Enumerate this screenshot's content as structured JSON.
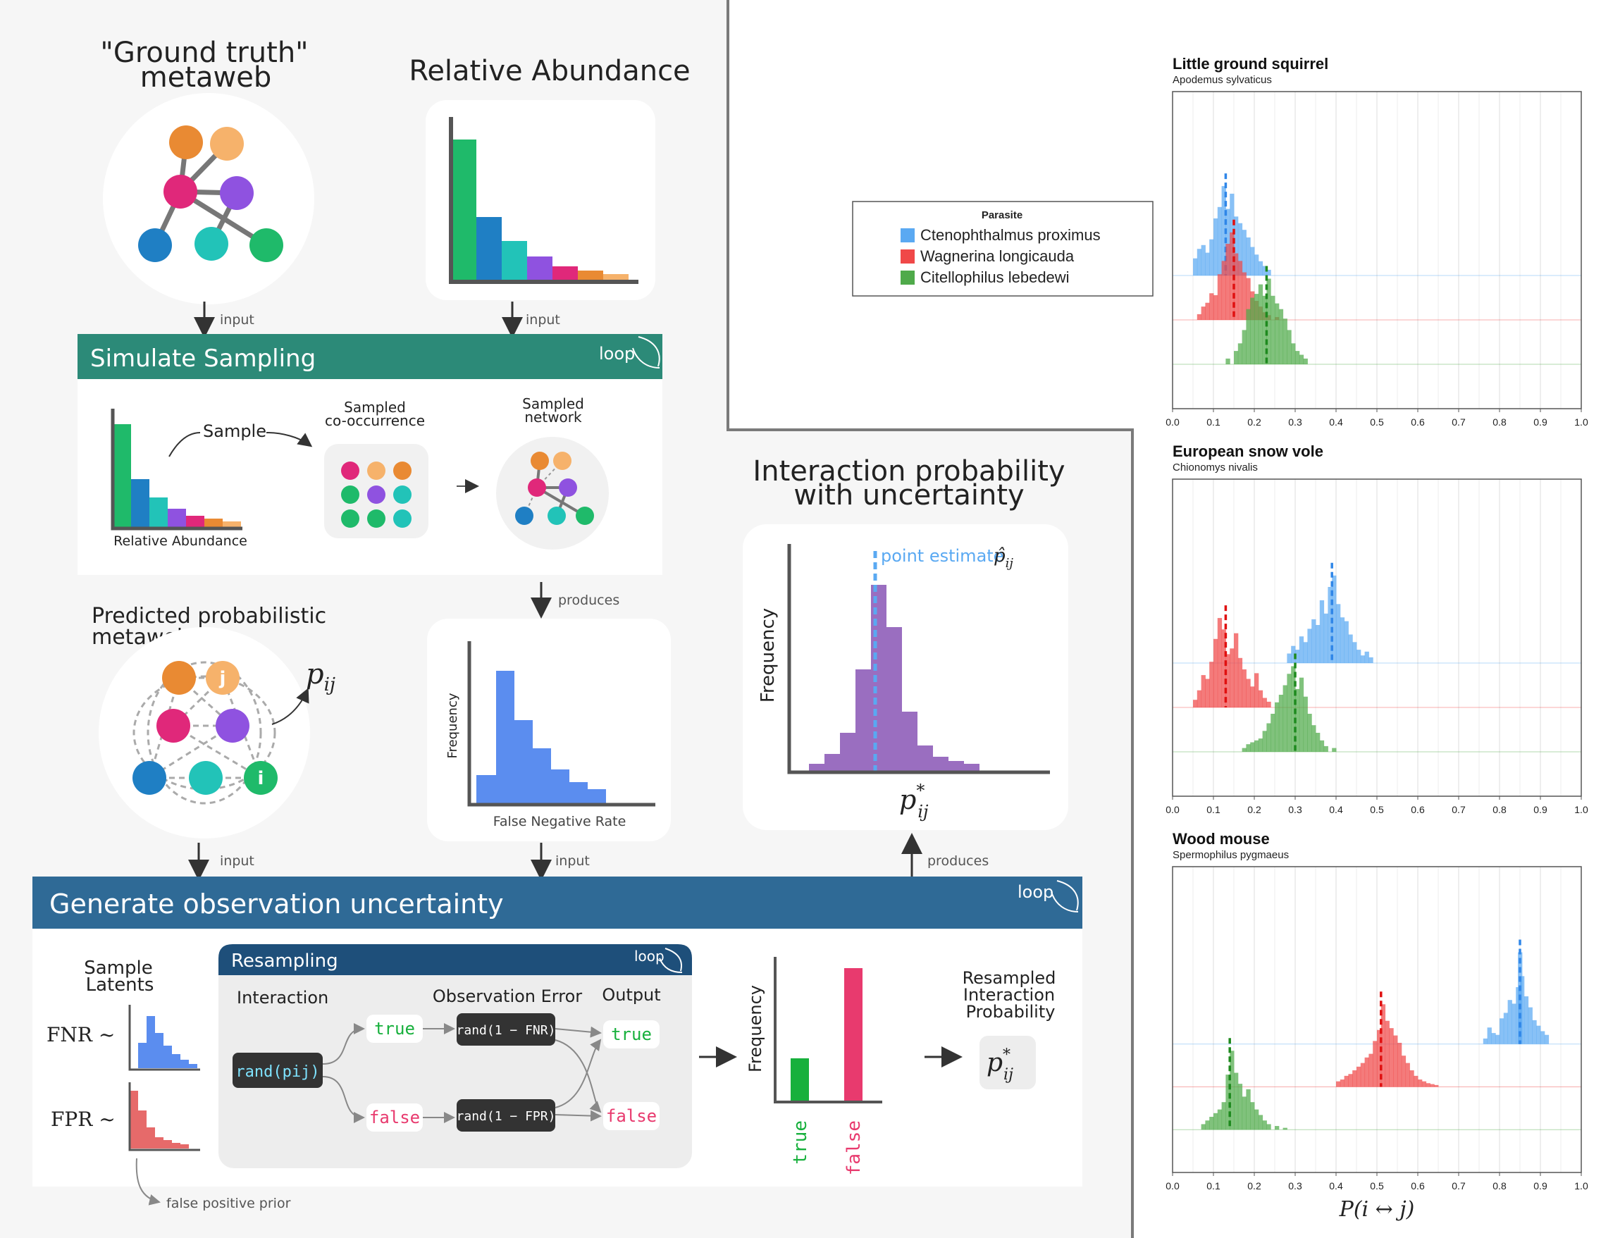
{
  "workflow": {
    "ground_truth": {
      "title_line1": "\"Ground truth\"",
      "title_line2": "metaweb"
    },
    "relative_abundance": {
      "title": "Relative Abundance"
    },
    "arrows": {
      "input": "input",
      "produces": "produces"
    },
    "simulate_sampling": {
      "title": "Simulate Sampling",
      "loop_label": "loop",
      "sample_label": "Sample",
      "sampled_cooccurrence_line1": "Sampled",
      "sampled_cooccurrence_line2": "co-occurrence",
      "sampled_network_line1": "Sampled",
      "sampled_network_line2": "network",
      "relative_abundance_caption": "Relative Abundance"
    },
    "predicted_metaweb": {
      "title_line1": "Predicted probabilistic",
      "title_line2": "metaweb",
      "pij_label": "p_ij",
      "node_i": "i",
      "node_j": "j"
    },
    "fnr_histogram": {
      "ylabel": "Frequency",
      "xlabel": "False Negative Rate"
    },
    "interaction_probability": {
      "title_line1": "Interaction probability",
      "title_line2": "with uncertainty",
      "ylabel": "Frequency",
      "point_estimate_label": "point estimate",
      "xlabel": "p*ij"
    },
    "generate_uncertainty": {
      "title": "Generate observation uncertainty",
      "loop_label": "loop",
      "sample_latents_line1": "Sample",
      "sample_latents_line2": "Latents",
      "fnr_label": "FNR ~",
      "fpr_label": "FPR ~",
      "false_positive_prior": "false positive prior",
      "resampling": {
        "title": "Resampling",
        "loop_label": "loop",
        "col_interaction": "Interaction",
        "col_observation_error": "Observation Error",
        "col_output": "Output",
        "rand_pij": "rand(pij)",
        "true_label": "true",
        "false_label": "false",
        "rand_fnr": "rand(1 − FNR)",
        "rand_fpr": "rand(1 − FPR)"
      },
      "output_hist_ylabel": "Frequency",
      "output_true": "true",
      "output_false": "false",
      "resampled_line1": "Resampled",
      "resampled_line2": "Interaction",
      "resampled_line3": "Probability",
      "pstar_label": "p*ij"
    }
  },
  "legend": {
    "title": "Parasite",
    "items": [
      {
        "name": "Ctenophthalmus proximus",
        "color": "#5aa9f2"
      },
      {
        "name": "Wagnerina longicauda",
        "color": "#f04848"
      },
      {
        "name": "Citellophilus lebedewi",
        "color": "#4faa4a"
      }
    ]
  },
  "chart_data": [
    {
      "type": "histogram",
      "title": "Little ground squirrel",
      "subtitle": "Apodemus sylvaticus",
      "xlim": [
        0.0,
        1.0
      ],
      "xticks": [
        "0.0",
        "0.1",
        "0.2",
        "0.3",
        "0.4",
        "0.5",
        "0.6",
        "0.7",
        "0.8",
        "0.9",
        "1.0"
      ],
      "series": [
        {
          "name": "Ctenophthalmus proximus",
          "point_estimate": 0.13,
          "bins": [
            [
              0.05,
              0.18
            ],
            [
              0.06,
              0.28
            ],
            [
              0.07,
              0.32
            ],
            [
              0.08,
              0.24
            ],
            [
              0.09,
              0.38
            ],
            [
              0.1,
              0.6
            ],
            [
              0.11,
              0.72
            ],
            [
              0.12,
              0.94
            ],
            [
              0.13,
              0.7
            ],
            [
              0.14,
              0.86
            ],
            [
              0.15,
              0.62
            ],
            [
              0.16,
              0.55
            ],
            [
              0.17,
              0.48
            ],
            [
              0.18,
              0.4
            ],
            [
              0.19,
              0.3
            ],
            [
              0.2,
              0.22
            ],
            [
              0.21,
              0.15
            ],
            [
              0.22,
              0.1
            ],
            [
              0.23,
              0.06
            ]
          ]
        },
        {
          "name": "Wagnerina longicauda",
          "point_estimate": 0.15,
          "bins": [
            [
              0.06,
              0.06
            ],
            [
              0.07,
              0.14
            ],
            [
              0.08,
              0.18
            ],
            [
              0.09,
              0.28
            ],
            [
              0.1,
              0.26
            ],
            [
              0.11,
              0.48
            ],
            [
              0.12,
              0.62
            ],
            [
              0.13,
              0.8
            ],
            [
              0.14,
              0.92
            ],
            [
              0.15,
              0.7
            ],
            [
              0.16,
              0.62
            ],
            [
              0.17,
              0.5
            ],
            [
              0.18,
              0.44
            ],
            [
              0.19,
              0.3
            ],
            [
              0.2,
              0.2
            ],
            [
              0.21,
              0.14
            ],
            [
              0.22,
              0.08
            ],
            [
              0.23,
              0.05
            ],
            [
              0.25,
              0.03
            ]
          ]
        },
        {
          "name": "Citellophilus lebedewi",
          "point_estimate": 0.23,
          "bins": [
            [
              0.13,
              0.06
            ],
            [
              0.15,
              0.14
            ],
            [
              0.16,
              0.22
            ],
            [
              0.17,
              0.36
            ],
            [
              0.18,
              0.58
            ],
            [
              0.19,
              0.7
            ],
            [
              0.2,
              0.74
            ],
            [
              0.21,
              0.84
            ],
            [
              0.22,
              0.72
            ],
            [
              0.23,
              0.9
            ],
            [
              0.24,
              0.72
            ],
            [
              0.25,
              0.64
            ],
            [
              0.26,
              0.58
            ],
            [
              0.27,
              0.48
            ],
            [
              0.28,
              0.36
            ],
            [
              0.29,
              0.22
            ],
            [
              0.3,
              0.14
            ],
            [
              0.31,
              0.1
            ],
            [
              0.32,
              0.06
            ]
          ]
        }
      ]
    },
    {
      "type": "histogram",
      "title": "European snow vole",
      "subtitle": "Chionomys nivalis",
      "xlim": [
        0.0,
        1.0
      ],
      "xticks": [
        "0.0",
        "0.1",
        "0.2",
        "0.3",
        "0.4",
        "0.5",
        "0.6",
        "0.7",
        "0.8",
        "0.9",
        "1.0"
      ],
      "series": [
        {
          "name": "Ctenophthalmus proximus",
          "point_estimate": 0.39,
          "bins": [
            [
              0.28,
              0.1
            ],
            [
              0.29,
              0.18
            ],
            [
              0.3,
              0.14
            ],
            [
              0.31,
              0.28
            ],
            [
              0.32,
              0.22
            ],
            [
              0.33,
              0.36
            ],
            [
              0.34,
              0.46
            ],
            [
              0.35,
              0.4
            ],
            [
              0.36,
              0.66
            ],
            [
              0.37,
              0.52
            ],
            [
              0.38,
              0.8
            ],
            [
              0.39,
              0.92
            ],
            [
              0.4,
              0.62
            ],
            [
              0.41,
              0.48
            ],
            [
              0.42,
              0.44
            ],
            [
              0.43,
              0.3
            ],
            [
              0.44,
              0.22
            ],
            [
              0.45,
              0.14
            ],
            [
              0.46,
              0.08
            ],
            [
              0.47,
              0.12
            ],
            [
              0.48,
              0.06
            ]
          ]
        },
        {
          "name": "Wagnerina longicauda",
          "point_estimate": 0.13,
          "bins": [
            [
              0.05,
              0.08
            ],
            [
              0.06,
              0.18
            ],
            [
              0.07,
              0.34
            ],
            [
              0.08,
              0.3
            ],
            [
              0.09,
              0.48
            ],
            [
              0.1,
              0.72
            ],
            [
              0.11,
              0.94
            ],
            [
              0.12,
              0.82
            ],
            [
              0.13,
              0.56
            ],
            [
              0.14,
              0.62
            ],
            [
              0.15,
              0.78
            ],
            [
              0.16,
              0.52
            ],
            [
              0.17,
              0.4
            ],
            [
              0.18,
              0.3
            ],
            [
              0.19,
              0.22
            ],
            [
              0.2,
              0.36
            ],
            [
              0.21,
              0.18
            ],
            [
              0.22,
              0.1
            ],
            [
              0.23,
              0.06
            ]
          ]
        },
        {
          "name": "Citellophilus lebedewi",
          "point_estimate": 0.3,
          "bins": [
            [
              0.17,
              0.04
            ],
            [
              0.18,
              0.08
            ],
            [
              0.19,
              0.1
            ],
            [
              0.2,
              0.12
            ],
            [
              0.21,
              0.14
            ],
            [
              0.22,
              0.22
            ],
            [
              0.23,
              0.3
            ],
            [
              0.24,
              0.4
            ],
            [
              0.25,
              0.52
            ],
            [
              0.26,
              0.6
            ],
            [
              0.27,
              0.7
            ],
            [
              0.28,
              0.82
            ],
            [
              0.29,
              0.9
            ],
            [
              0.3,
              0.66
            ],
            [
              0.31,
              0.78
            ],
            [
              0.32,
              0.58
            ],
            [
              0.33,
              0.4
            ],
            [
              0.34,
              0.28
            ],
            [
              0.35,
              0.2
            ],
            [
              0.36,
              0.12
            ],
            [
              0.37,
              0.06
            ],
            [
              0.39,
              0.04
            ]
          ]
        }
      ]
    },
    {
      "type": "histogram",
      "title": "Wood mouse",
      "subtitle": "Spermophilus pygmaeus",
      "xlabel": "P(i ↔ j)",
      "xlim": [
        0.0,
        1.0
      ],
      "xticks": [
        "0.0",
        "0.1",
        "0.2",
        "0.3",
        "0.4",
        "0.5",
        "0.6",
        "0.7",
        "0.8",
        "0.9",
        "1.0"
      ],
      "series": [
        {
          "name": "Ctenophthalmus proximus",
          "point_estimate": 0.85,
          "bins": [
            [
              0.76,
              0.06
            ],
            [
              0.77,
              0.18
            ],
            [
              0.78,
              0.12
            ],
            [
              0.79,
              0.1
            ],
            [
              0.8,
              0.28
            ],
            [
              0.81,
              0.34
            ],
            [
              0.82,
              0.48
            ],
            [
              0.83,
              0.44
            ],
            [
              0.84,
              0.62
            ],
            [
              0.845,
              1.0
            ],
            [
              0.85,
              0.74
            ],
            [
              0.86,
              0.52
            ],
            [
              0.87,
              0.4
            ],
            [
              0.88,
              0.26
            ],
            [
              0.89,
              0.2
            ],
            [
              0.9,
              0.14
            ],
            [
              0.91,
              0.1
            ]
          ]
        },
        {
          "name": "Wagnerina longicauda",
          "point_estimate": 0.51,
          "bins": [
            [
              0.4,
              0.06
            ],
            [
              0.41,
              0.08
            ],
            [
              0.42,
              0.12
            ],
            [
              0.43,
              0.14
            ],
            [
              0.44,
              0.18
            ],
            [
              0.45,
              0.22
            ],
            [
              0.46,
              0.26
            ],
            [
              0.47,
              0.32
            ],
            [
              0.48,
              0.36
            ],
            [
              0.49,
              0.5
            ],
            [
              0.5,
              0.62
            ],
            [
              0.51,
              0.9
            ],
            [
              0.52,
              0.72
            ],
            [
              0.53,
              0.64
            ],
            [
              0.54,
              0.56
            ],
            [
              0.55,
              0.48
            ],
            [
              0.56,
              0.34
            ],
            [
              0.57,
              0.26
            ],
            [
              0.58,
              0.18
            ],
            [
              0.59,
              0.12
            ],
            [
              0.6,
              0.08
            ],
            [
              0.61,
              0.06
            ],
            [
              0.62,
              0.04
            ],
            [
              0.63,
              0.03
            ],
            [
              0.64,
              0.02
            ]
          ]
        },
        {
          "name": "Citellophilus lebedewi",
          "point_estimate": 0.14,
          "bins": [
            [
              0.07,
              0.06
            ],
            [
              0.08,
              0.1
            ],
            [
              0.09,
              0.14
            ],
            [
              0.1,
              0.18
            ],
            [
              0.11,
              0.22
            ],
            [
              0.12,
              0.3
            ],
            [
              0.13,
              0.6
            ],
            [
              0.14,
              0.86
            ],
            [
              0.15,
              0.62
            ],
            [
              0.16,
              0.5
            ],
            [
              0.17,
              0.36
            ],
            [
              0.18,
              0.44
            ],
            [
              0.19,
              0.3
            ],
            [
              0.2,
              0.22
            ],
            [
              0.21,
              0.16
            ],
            [
              0.22,
              0.1
            ],
            [
              0.23,
              0.06
            ],
            [
              0.25,
              0.04
            ],
            [
              0.27,
              0.02
            ]
          ]
        }
      ]
    }
  ]
}
